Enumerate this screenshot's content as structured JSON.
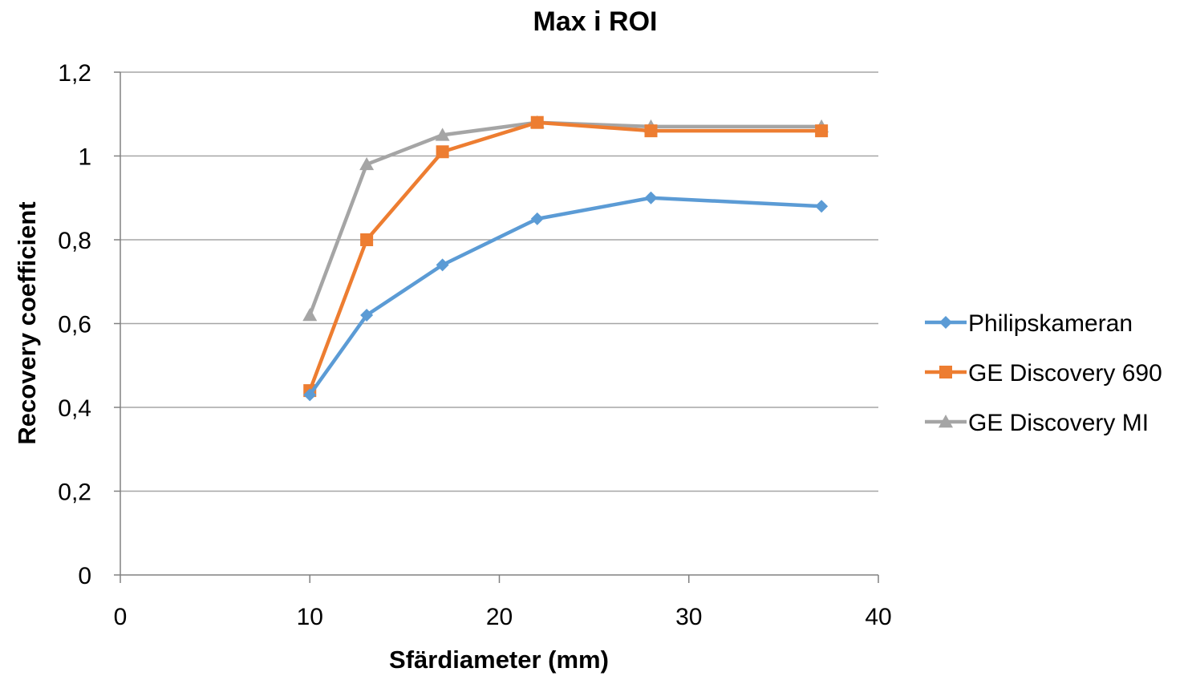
{
  "chart_data": {
    "type": "scatter",
    "title": "Max i ROI",
    "xlabel": "Sfärdiameter (mm)",
    "ylabel": "Recovery coefficient",
    "xlim": [
      0,
      40
    ],
    "ylim": [
      0,
      1.2
    ],
    "xticks": [
      0,
      10,
      20,
      30,
      40
    ],
    "yticks": [
      0,
      0.2,
      0.4,
      0.6,
      0.8,
      1,
      1.2
    ],
    "xtick_labels": [
      "0",
      "10",
      "20",
      "30",
      "40"
    ],
    "ytick_labels": [
      "0",
      "0,2",
      "0,4",
      "0,6",
      "0,8",
      "1",
      "1,2"
    ],
    "grid": "horizontal",
    "legend_position": "right",
    "series": [
      {
        "name": "Philipskameran",
        "color": "#5b9bd5",
        "marker": "diamond",
        "x": [
          10,
          13,
          17,
          22,
          28,
          37
        ],
        "y": [
          0.43,
          0.62,
          0.74,
          0.85,
          0.9,
          0.88
        ]
      },
      {
        "name": "GE Discovery 690",
        "color": "#ed7d31",
        "marker": "square",
        "x": [
          10,
          13,
          17,
          22,
          28,
          37
        ],
        "y": [
          0.44,
          0.8,
          1.01,
          1.08,
          1.06,
          1.06
        ]
      },
      {
        "name": "GE Discovery MI",
        "color": "#a5a5a5",
        "marker": "triangle",
        "x": [
          10,
          13,
          17,
          22,
          28,
          37
        ],
        "y": [
          0.62,
          0.98,
          1.05,
          1.08,
          1.07,
          1.07
        ]
      }
    ]
  }
}
